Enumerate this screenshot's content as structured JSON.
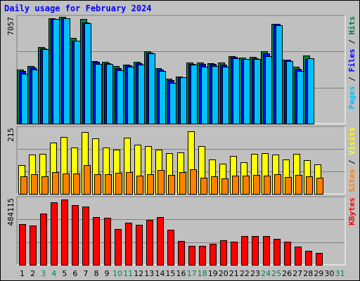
{
  "chart_data": {
    "type": "bar",
    "title": "Daily usage for February 2024",
    "x": [
      "1",
      "2",
      "3",
      "4",
      "5",
      "6",
      "7",
      "8",
      "9",
      "10",
      "11",
      "12",
      "13",
      "14",
      "15",
      "16",
      "17",
      "18",
      "19",
      "20",
      "21",
      "22",
      "23",
      "24",
      "25",
      "26",
      "27",
      "28",
      "29",
      "30",
      "31"
    ],
    "weekend_days": [
      "3",
      "4",
      "10",
      "11",
      "17",
      "18",
      "24",
      "25",
      "31"
    ],
    "panels": [
      {
        "id": "top",
        "ymax_label": "7057",
        "ylim": [
          0,
          7057
        ],
        "legend": [
          {
            "text": "Pages",
            "color": "#00c0ff"
          },
          {
            "text": " / ",
            "color": "#000000"
          },
          {
            "text": "Files",
            "color": "#0000ff"
          },
          {
            "text": " / ",
            "color": "#000000"
          },
          {
            "text": "Hits",
            "color": "#008040"
          }
        ],
        "series": [
          {
            "name": "Hits",
            "color": "#008040",
            "values": [
              3570,
              3810,
              5050,
              6960,
              7040,
              5680,
              6900,
              4150,
              4070,
              3790,
              3880,
              4080,
              4790,
              3690,
              2990,
              3090,
              4050,
              4060,
              3980,
              4060,
              4460,
              4360,
              4410,
              4780,
              6610,
              4240,
              3750,
              4500,
              null,
              null,
              null
            ]
          },
          {
            "name": "Files",
            "color": "#0000ff",
            "values": [
              3460,
              3720,
              4990,
              6900,
              6980,
              5480,
              6690,
              4080,
              3970,
              3680,
              3840,
              3990,
              4700,
              3580,
              2870,
              3080,
              3930,
              3940,
              3930,
              3880,
              4400,
              4290,
              4330,
              4640,
              6570,
              4210,
              3620,
              4270,
              null,
              null,
              null
            ]
          },
          {
            "name": "Pages",
            "color": "#00c0ff",
            "values": [
              3300,
              3580,
              4940,
              6900,
              6980,
              5480,
              6620,
              3960,
              3950,
              3530,
              3770,
              3920,
              4620,
              3460,
              2690,
              3070,
              3900,
              3750,
              3820,
              3750,
              4340,
              4290,
              4250,
              4470,
              6480,
              4120,
              3500,
              4300,
              null,
              null,
              null
            ]
          }
        ]
      },
      {
        "id": "middle",
        "ymax_label": "215",
        "ylim": [
          0,
          215
        ],
        "legend": [
          {
            "text": "Sites",
            "color": "#ff8000"
          },
          {
            "text": " / ",
            "color": "#000000"
          },
          {
            "text": "Visits",
            "color": "#ffff00"
          }
        ],
        "series": [
          {
            "name": "Visits",
            "color": "#ffff00",
            "values": [
              93,
              128,
              131,
              168,
              185,
              152,
              202,
              180,
              152,
              145,
              182,
              159,
              155,
              144,
              132,
              135,
              204,
              155,
              113,
              99,
              123,
              103,
              131,
              132,
              129,
              111,
              131,
              110,
              97,
              null,
              null
            ]
          },
          {
            "name": "Sites",
            "color": "#ff8000",
            "values": [
              58,
              63,
              57,
              70,
              66,
              67,
              93,
              63,
              64,
              68,
              71,
              59,
              65,
              77,
              62,
              71,
              79,
              52,
              58,
              51,
              60,
              59,
              62,
              59,
              64,
              56,
              61,
              58,
              52,
              null,
              null
            ]
          }
        ]
      },
      {
        "id": "bottom",
        "ymax_label": "484115",
        "ylim": [
          0,
          484115
        ],
        "legend": [
          {
            "text": "KBytes",
            "color": "#ff0000"
          }
        ],
        "series": [
          {
            "name": "KBytes",
            "color": "#ff0000",
            "values": [
              294000,
              285000,
              373000,
              453000,
              473000,
              434000,
              425000,
              348000,
              341000,
              260000,
              306000,
              290000,
              326000,
              344000,
              254000,
              175000,
              136000,
              136000,
              153000,
              180000,
              167000,
              209000,
              211000,
              207000,
              189000,
              170000,
              130000,
              101000,
              88000,
              null,
              null
            ]
          }
        ]
      }
    ]
  }
}
